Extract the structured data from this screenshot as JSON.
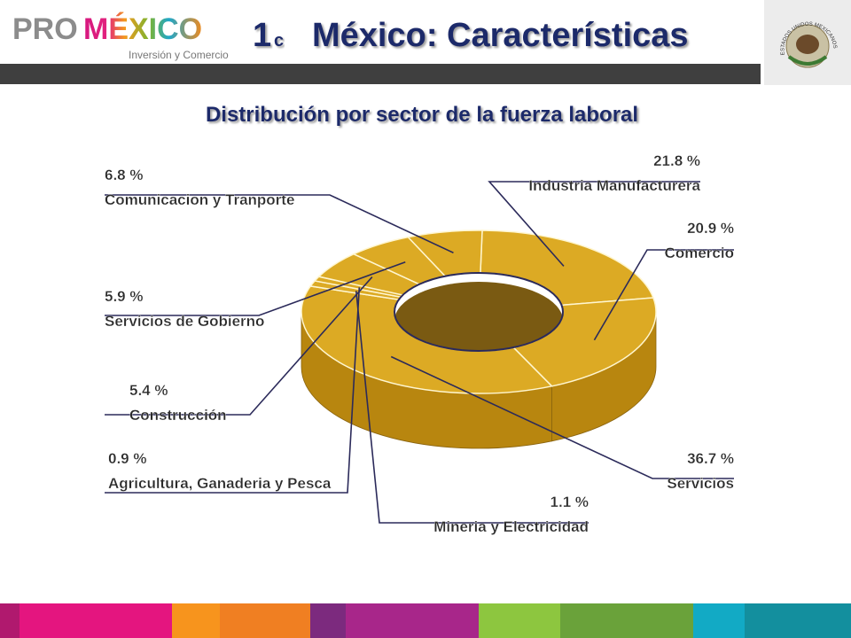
{
  "header": {
    "logo_pro": "PRO",
    "logo_mexico": "MÉXICO",
    "logo_subtitle": "Inversión y Comercio",
    "slide_number": "1",
    "slide_letter": "c",
    "title": "México: Características",
    "emblem_text": "ESTADOS UNIDOS MEXICANOS"
  },
  "chart_data": {
    "type": "donut",
    "title": "Distribución por sector de la fuerza laboral",
    "categories": [
      "Industria Manufacturera",
      "Comercio",
      "Servicios",
      "Mineria y Electricidad",
      "Agricultura, Ganaderia y Pesca",
      "Construcción",
      "Servicios de Gobierno",
      "Comunicacion y Tranporte"
    ],
    "values": [
      21.8,
      20.9,
      36.7,
      1.1,
      0.9,
      5.4,
      5.9,
      6.8
    ],
    "value_labels": [
      "21.8 %",
      "20.9 %",
      "36.7 %",
      "1.1 %",
      "0.9 %",
      "5.4 %",
      "5.9 %",
      "6.8 %"
    ],
    "color": "#dcaa24"
  }
}
